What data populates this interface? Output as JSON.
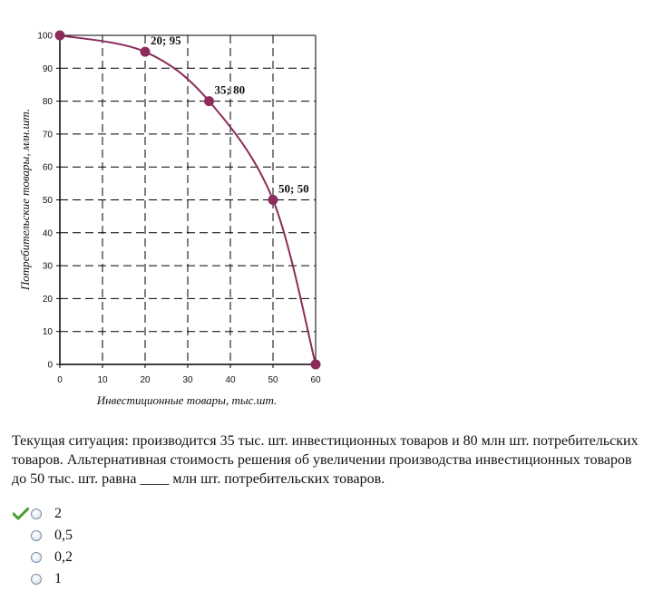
{
  "chart_data": {
    "type": "line",
    "xlabel": "Инвестиционные товары, тыс.шт.",
    "ylabel": "Потребительские товары, млн.шт.",
    "x_ticks": [
      0,
      10,
      20,
      30,
      40,
      50,
      60
    ],
    "y_ticks": [
      0,
      10,
      20,
      30,
      40,
      50,
      60,
      70,
      80,
      90,
      100
    ],
    "xlim": [
      0,
      60
    ],
    "ylim": [
      0,
      100
    ],
    "grid": true,
    "curve": {
      "x": [
        0,
        20,
        35,
        50,
        60
      ],
      "y": [
        100,
        95,
        80,
        50,
        0
      ]
    },
    "points": [
      {
        "x": 0,
        "y": 100,
        "label": ""
      },
      {
        "x": 20,
        "y": 95,
        "label": "20; 95"
      },
      {
        "x": 35,
        "y": 80,
        "label": "35; 80"
      },
      {
        "x": 50,
        "y": 50,
        "label": "50; 50"
      },
      {
        "x": 60,
        "y": 0,
        "label": ""
      }
    ],
    "colors": {
      "curve": "#8b2c5c",
      "grid": "#000000"
    }
  },
  "question": {
    "text": "Текущая ситуация: производится 35 тыс. шт. инвестиционных товаров и 80 млн шт. потребительских товаров. Альтернативная стоимость решения об увеличении производства инвестиционных товаров до 50 тыс. шт. равна ____ млн шт. потребительских товаров."
  },
  "options": [
    {
      "label": "2",
      "checked": true
    },
    {
      "label": "0,5",
      "checked": false
    },
    {
      "label": "0,2",
      "checked": false
    },
    {
      "label": "1",
      "checked": false
    }
  ],
  "colors": {
    "check_mark": "#4a9a2a"
  }
}
